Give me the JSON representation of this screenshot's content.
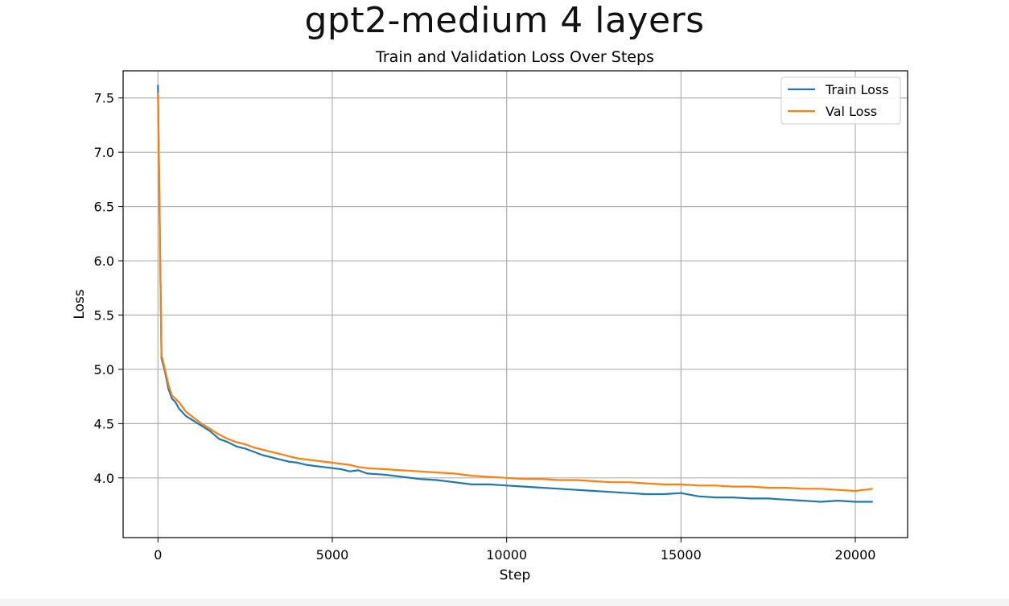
{
  "figure": {
    "suptitle": "gpt2-medium 4 layers"
  },
  "chart_data": {
    "type": "line",
    "title": "Train and Validation Loss Over Steps",
    "xlabel": "Step",
    "ylabel": "Loss",
    "xlim": [
      -1000,
      21500
    ],
    "ylim": [
      3.45,
      7.75
    ],
    "xticks": [
      0,
      5000,
      10000,
      15000,
      20000
    ],
    "xtick_labels": [
      "0",
      "5000",
      "10000",
      "15000",
      "20000"
    ],
    "yticks": [
      4.0,
      4.5,
      5.0,
      5.5,
      6.0,
      6.5,
      7.0,
      7.5
    ],
    "ytick_labels": [
      "4.0",
      "4.5",
      "5.0",
      "5.5",
      "6.0",
      "6.5",
      "7.0",
      "7.5"
    ],
    "grid": true,
    "legend_position": "top-right",
    "series": [
      {
        "name": "Train Loss",
        "color": "#1f77b4",
        "x": [
          0,
          100,
          200,
          300,
          400,
          500,
          600,
          800,
          1000,
          1250,
          1500,
          1750,
          2000,
          2250,
          2500,
          2750,
          3000,
          3250,
          3500,
          3750,
          4000,
          4250,
          4500,
          4750,
          5000,
          5250,
          5500,
          5750,
          6000,
          6500,
          7000,
          7500,
          8000,
          8500,
          9000,
          9500,
          10000,
          10500,
          11000,
          11500,
          12000,
          12500,
          13000,
          13500,
          14000,
          14500,
          15000,
          15500,
          16000,
          16500,
          17000,
          17500,
          18000,
          18500,
          19000,
          19500,
          20000,
          20500
        ],
        "y": [
          7.62,
          5.1,
          4.98,
          4.82,
          4.73,
          4.7,
          4.64,
          4.57,
          4.53,
          4.48,
          4.43,
          4.36,
          4.33,
          4.29,
          4.27,
          4.24,
          4.21,
          4.19,
          4.17,
          4.15,
          4.14,
          4.12,
          4.11,
          4.1,
          4.09,
          4.08,
          4.06,
          4.07,
          4.04,
          4.03,
          4.01,
          3.99,
          3.98,
          3.96,
          3.94,
          3.94,
          3.93,
          3.92,
          3.91,
          3.9,
          3.89,
          3.88,
          3.87,
          3.86,
          3.85,
          3.85,
          3.86,
          3.83,
          3.82,
          3.82,
          3.81,
          3.81,
          3.8,
          3.79,
          3.78,
          3.79,
          3.78,
          3.78
        ]
      },
      {
        "name": "Val Loss",
        "color": "#ff7f0e",
        "x": [
          0,
          100,
          200,
          300,
          400,
          500,
          600,
          800,
          1000,
          1250,
          1500,
          1750,
          2000,
          2250,
          2500,
          2750,
          3000,
          3250,
          3500,
          3750,
          4000,
          4250,
          4500,
          4750,
          5000,
          5250,
          5500,
          5750,
          6000,
          6500,
          7000,
          7500,
          8000,
          8500,
          9000,
          9500,
          10000,
          10500,
          11000,
          11500,
          12000,
          12500,
          13000,
          13500,
          14000,
          14500,
          15000,
          15500,
          16000,
          16500,
          17000,
          17500,
          18000,
          18500,
          19000,
          19500,
          20000,
          20500
        ],
        "y": [
          7.55,
          5.13,
          5.0,
          4.86,
          4.76,
          4.73,
          4.7,
          4.61,
          4.56,
          4.5,
          4.45,
          4.4,
          4.36,
          4.33,
          4.31,
          4.28,
          4.26,
          4.24,
          4.22,
          4.2,
          4.18,
          4.17,
          4.16,
          4.15,
          4.14,
          4.13,
          4.12,
          4.1,
          4.09,
          4.08,
          4.07,
          4.06,
          4.05,
          4.04,
          4.02,
          4.01,
          4.0,
          3.99,
          3.99,
          3.98,
          3.98,
          3.97,
          3.96,
          3.96,
          3.95,
          3.94,
          3.94,
          3.93,
          3.93,
          3.92,
          3.92,
          3.91,
          3.91,
          3.9,
          3.9,
          3.89,
          3.88,
          3.9
        ]
      }
    ]
  }
}
